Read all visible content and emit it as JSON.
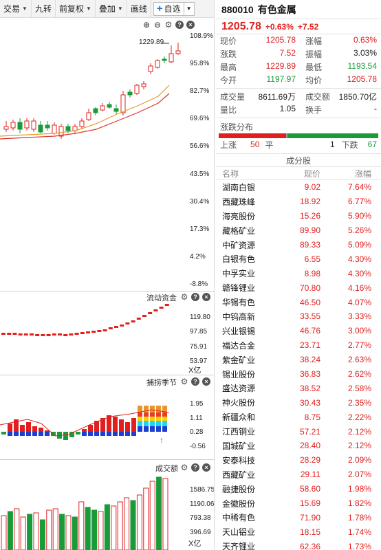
{
  "toolbar": {
    "trade": "交易",
    "nine_turn": "九转",
    "adjust": "前复权",
    "overlay": "叠加",
    "draw": "画线",
    "watchlist": "自选"
  },
  "kline": {
    "high_label": "1229.89",
    "y_ticks": [
      "108.9%",
      "95.8%",
      "82.7%",
      "69.6%",
      "56.6%",
      "43.5%",
      "30.4%",
      "17.3%",
      "4.2%",
      "-8.8%"
    ]
  },
  "fund_flow": {
    "title": "流动资金",
    "ticks": [
      "119.80",
      "97.85",
      "75.91",
      "53.97"
    ],
    "unit": "X亿"
  },
  "catch": {
    "title": "捕捞季节",
    "ticks": [
      "1.95",
      "1.11",
      "0.28",
      "-0.56"
    ]
  },
  "turnover": {
    "title": "成交额",
    "ticks": [
      "1586.75",
      "1190.06",
      "793.38",
      "396.69"
    ],
    "unit": "X亿"
  },
  "security": {
    "code": "880010",
    "name": "有色金属",
    "price": "1205.78",
    "change_pct": "+0.63%",
    "change": "+7.52"
  },
  "quote": [
    {
      "l1": "现价",
      "v1": "1205.78",
      "c1": "red",
      "l2": "涨幅",
      "v2": "0.63%",
      "c2": "red"
    },
    {
      "l1": "涨跌",
      "v1": "7.52",
      "c1": "red",
      "l2": "振幅",
      "v2": "3.03%",
      "c2": "blk"
    },
    {
      "l1": "最高",
      "v1": "1229.89",
      "c1": "red",
      "l2": "最低",
      "v2": "1193.54",
      "c2": "green"
    },
    {
      "l1": "今开",
      "v1": "1197.97",
      "c1": "green",
      "l2": "均价",
      "v2": "1205.78",
      "c2": "red"
    }
  ],
  "quote2": [
    {
      "l1": "成交量",
      "v1": "8611.69万",
      "c1": "blk",
      "l2": "成交额",
      "v2": "1850.70亿",
      "c2": "blk"
    },
    {
      "l1": "量比",
      "v1": "1.05",
      "c1": "blk",
      "l2": "换手",
      "v2": "-",
      "c2": "blk"
    }
  ],
  "distribution": {
    "title": "涨跌分布",
    "up_label": "上涨",
    "up": "50",
    "flat_label": "平",
    "flat": "1",
    "down_label": "下跌",
    "down": "67"
  },
  "components": {
    "title": "成分股",
    "headers": [
      "名称",
      "现价",
      "涨幅"
    ],
    "rows": [
      [
        "湖南白银",
        "9.02",
        "7.64%"
      ],
      [
        "西藏珠峰",
        "18.92",
        "6.77%"
      ],
      [
        "海亮股份",
        "15.26",
        "5.90%"
      ],
      [
        "藏格矿业",
        "89.90",
        "5.26%"
      ],
      [
        "中矿资源",
        "89.33",
        "5.09%"
      ],
      [
        "白银有色",
        "6.55",
        "4.30%"
      ],
      [
        "中孚实业",
        "8.98",
        "4.30%"
      ],
      [
        "赣锋锂业",
        "70.80",
        "4.16%"
      ],
      [
        "华锡有色",
        "46.50",
        "4.07%"
      ],
      [
        "中钨高新",
        "33.55",
        "3.33%"
      ],
      [
        "兴业银锡",
        "46.76",
        "3.00%"
      ],
      [
        "福达合金",
        "23.71",
        "2.77%"
      ],
      [
        "紫金矿业",
        "38.24",
        "2.63%"
      ],
      [
        "锡业股份",
        "36.83",
        "2.62%"
      ],
      [
        "盛达资源",
        "38.52",
        "2.58%"
      ],
      [
        "神火股份",
        "30.43",
        "2.35%"
      ],
      [
        "新疆众和",
        "8.75",
        "2.22%"
      ],
      [
        "江西铜业",
        "57.21",
        "2.12%"
      ],
      [
        "国城矿业",
        "28.40",
        "2.12%"
      ],
      [
        "安泰科技",
        "28.29",
        "2.09%"
      ],
      [
        "西藏矿业",
        "29.11",
        "2.07%"
      ],
      [
        "融捷股份",
        "58.60",
        "1.98%"
      ],
      [
        "金徽股份",
        "15.69",
        "1.82%"
      ],
      [
        "中稀有色",
        "71.90",
        "1.78%"
      ],
      [
        "天山铝业",
        "18.15",
        "1.74%"
      ],
      [
        "天齐锂业",
        "62.36",
        "1.73%"
      ]
    ]
  },
  "colors": {
    "up": "#e0201f",
    "down": "#1a9b3a",
    "accent": "#1f6fd6"
  }
}
